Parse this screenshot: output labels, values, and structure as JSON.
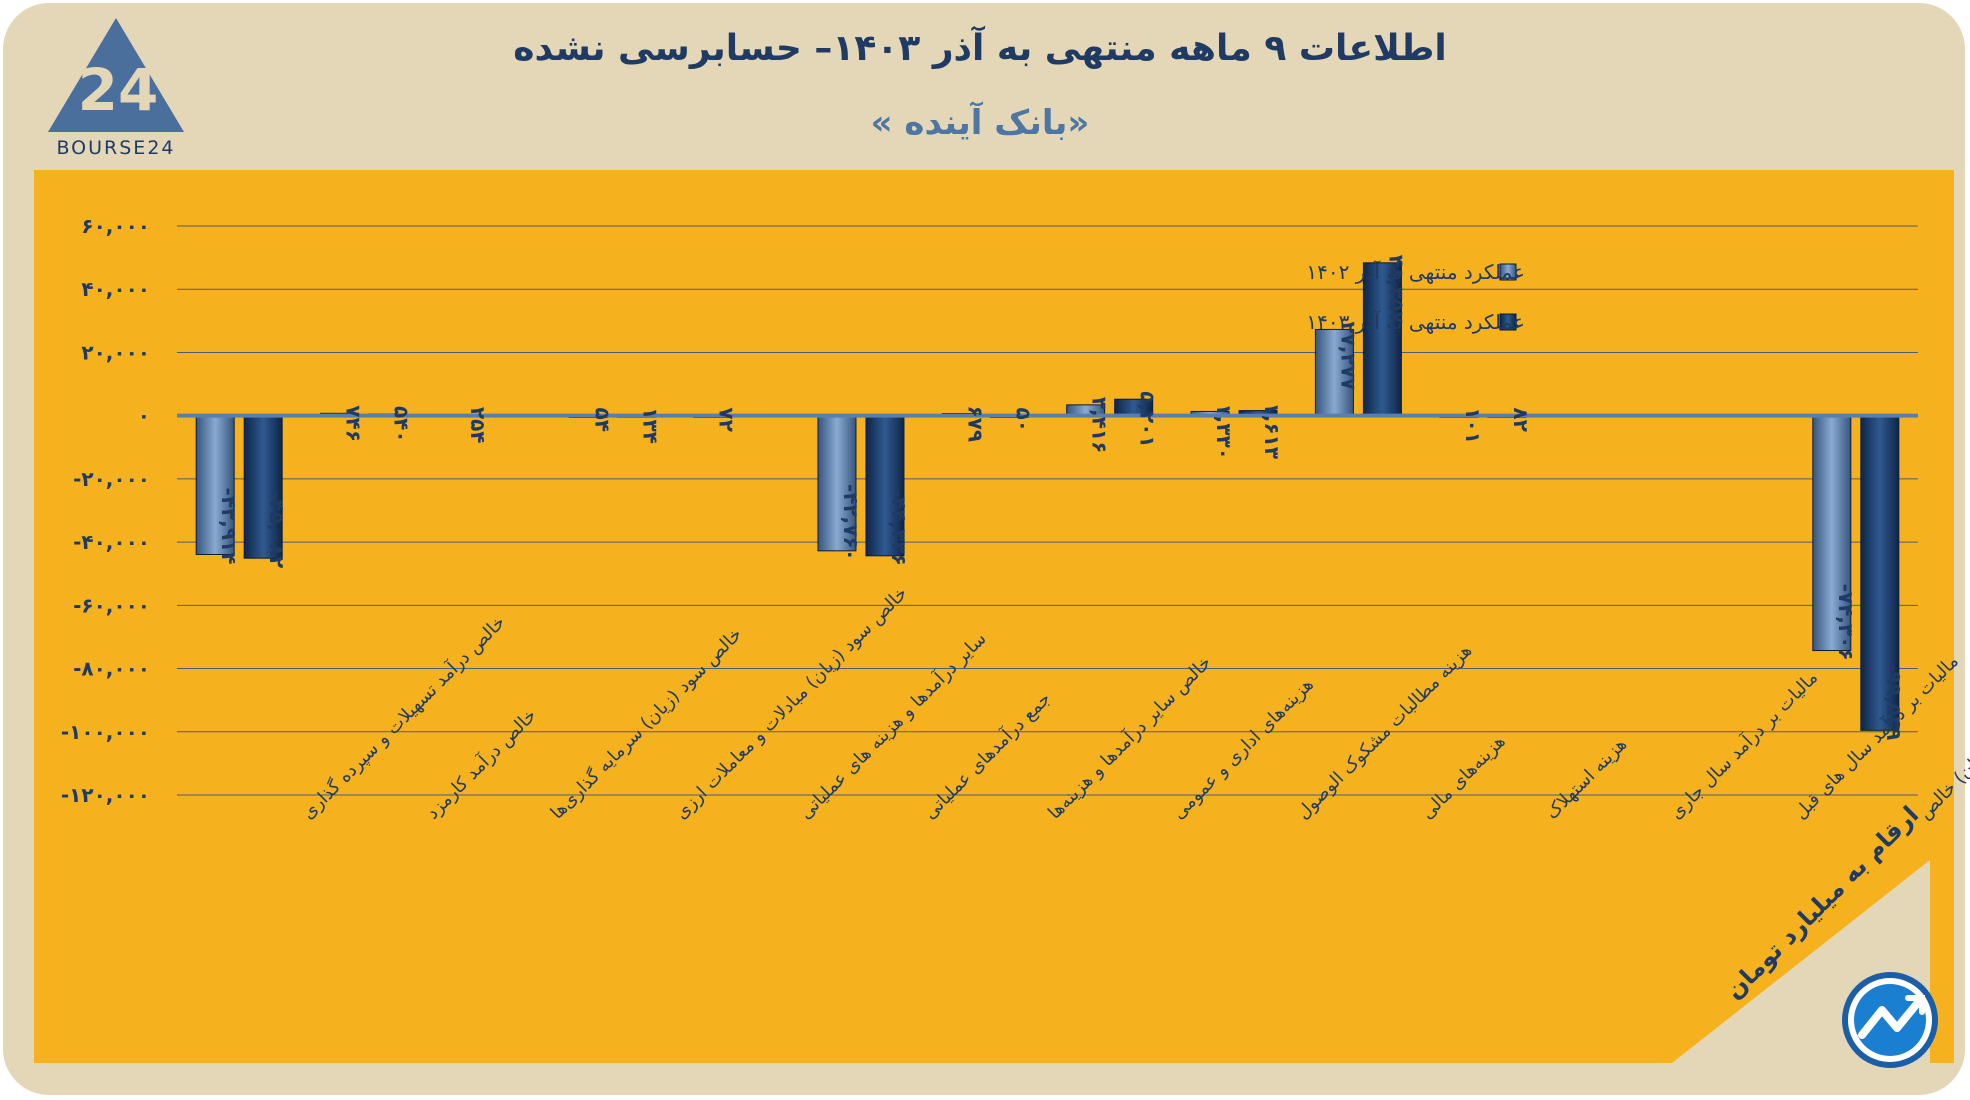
{
  "title": "اطلاعات ۹ ماهه منتهی به آذر ۱۴۰۳– حسابرسی نشده",
  "subtitle": "«بانک آینده »",
  "logo": {
    "text": "BOURSE24",
    "mark": "24"
  },
  "unit_note": "ارقام به میلیارد تومان",
  "colors": {
    "background": "#e3d7b8",
    "panel": "#f6b21e",
    "series1": "#5b7fad",
    "series2": "#173662",
    "text": "#1f3b63"
  },
  "chart_data": {
    "type": "bar",
    "title": "اطلاعات ۹ ماهه منتهی به آذر ۱۴۰۳– حسابرسی نشده",
    "ylim": [
      -120000,
      60000
    ],
    "yticks": [
      60000,
      40000,
      20000,
      0,
      -20000,
      -40000,
      -60000,
      -80000,
      -100000,
      -120000
    ],
    "ytick_labels": [
      "۶۰,۰۰۰",
      "۴۰,۰۰۰",
      "۲۰,۰۰۰",
      "۰",
      "-۲۰,۰۰۰",
      "-۴۰,۰۰۰",
      "-۶۰,۰۰۰",
      "-۸۰,۰۰۰",
      "-۱۰۰,۰۰۰",
      "-۱۲۰,۰۰۰"
    ],
    "categories": [
      "خالص درآمد تسهیلات و سپرده گذاری",
      "خالص درآمد کارمزد",
      "خالص سود (زیان) سرمایه گذاری‌ها",
      "خالص سود (زیان) مبادلات و معاملات ارزی",
      "سایر درآمدها و هزینه های عملیاتی",
      "جمع درآمدهای عملیاتی",
      "خالص سایر درآمدها و هزینه‌ها",
      "هزینه‌های اداری و عمومی",
      "هزینه مطالبات مشکوک الوصول",
      "هزینه‌های مالی",
      "هزینه استهلاک",
      "مالیات بر درآمد سال جاری",
      "مالیات بر درآمد سال های قبل",
      "سود(زیان) خالص"
    ],
    "series": [
      {
        "name": "عملکرد منتهی به آذر ۱۴۰۲",
        "values": [
          -43914,
          746,
          254,
          54,
          72,
          -42760,
          679,
          3416,
          1330,
          27277,
          101,
          null,
          null,
          -74306
        ],
        "labels": [
          "-۴۳,۹۱۴",
          "۷۴۶",
          "۲۵۴",
          "۵۴",
          "۷۲",
          "-۴۲,۷۶۰",
          "۶۷۹",
          "۳,۴۱۶",
          "۱,۳۳۰",
          "۲۷,۲۷۷",
          "۱۰۱",
          "",
          "",
          "-۷۴,۳۰۶"
        ]
      },
      {
        "name": "عملکرد منتهی به آذر ۱۴۰۳",
        "values": [
          -45082,
          540,
          null,
          134,
          null,
          -44336,
          50,
          5201,
          1613,
          48357,
          82,
          null,
          null,
          -99539
        ],
        "labels": [
          "-۴۵,۰۸۲",
          "۵۴۰",
          "",
          "۱۳۴",
          "",
          "-۴۴,۳۳۶",
          "۵۰",
          "۵,۲۰۱",
          "۱,۶۱۳",
          "۴۸,۳۵۷",
          "۸۲",
          "",
          "",
          "-۹۹,۵۳۹"
        ]
      }
    ],
    "legend": "top-right",
    "grid": true
  }
}
